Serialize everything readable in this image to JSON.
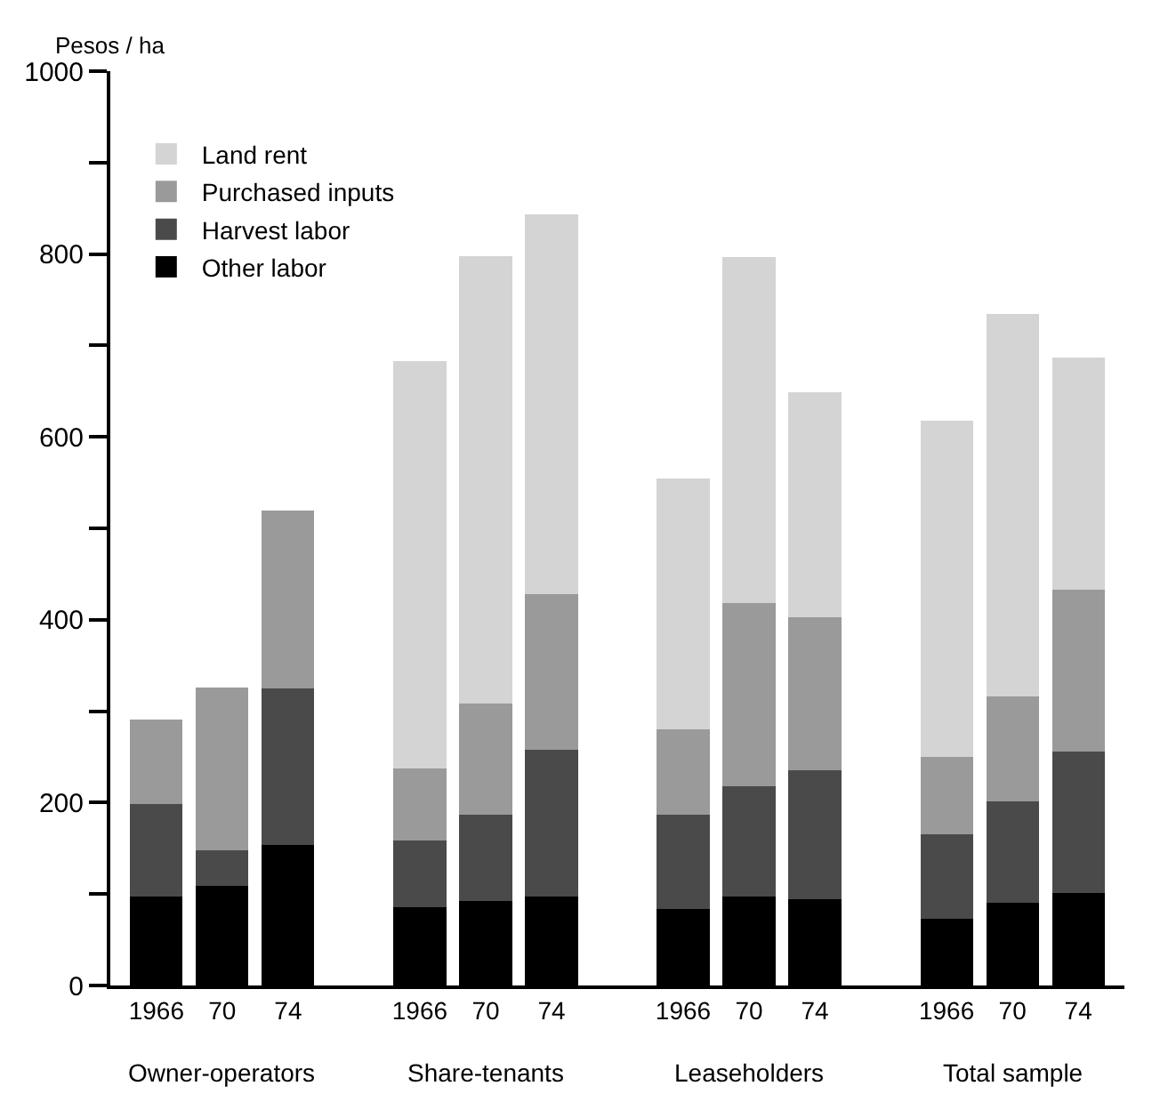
{
  "chart_data": {
    "type": "bar",
    "stacked": true,
    "ylabel": "Pesos / ha",
    "categories": [
      "1966",
      "70",
      "74",
      null,
      "1966",
      "70",
      "74",
      null,
      "1966",
      "70",
      "74",
      null,
      "1966",
      "70",
      "74"
    ],
    "series": [
      {
        "name": "Other labor",
        "color": "#000000",
        "values": [
          97,
          109,
          154,
          null,
          86,
          92,
          97,
          null,
          84,
          97,
          94,
          null,
          73,
          90,
          101
        ]
      },
      {
        "name": "Harvest labor",
        "color": "#4a4a4a",
        "values": [
          101,
          39,
          171,
          null,
          73,
          95,
          161,
          null,
          103,
          121,
          141,
          null,
          92,
          111,
          155
        ]
      },
      {
        "name": "Purchased inputs",
        "color": "#9a9a9a",
        "values": [
          93,
          178,
          194,
          null,
          78,
          121,
          170,
          null,
          93,
          200,
          168,
          null,
          85,
          115,
          177
        ]
      },
      {
        "name": "Land rent",
        "color": "#d4d4d4",
        "values": [
          0,
          0,
          0,
          null,
          446,
          490,
          415,
          null,
          274,
          379,
          246,
          null,
          368,
          418,
          254
        ]
      }
    ],
    "annotations": [
      "Owner-operators",
      "Share-tenants",
      "Leaseholders",
      "Total sample"
    ],
    "ylim": [
      0,
      1000
    ],
    "yticks": [
      0,
      {
        "value": 100,
        "label": null
      },
      200,
      {
        "value": 300,
        "label": null
      },
      400,
      {
        "value": 500,
        "label": null
      },
      600,
      {
        "value": 700,
        "label": null
      },
      800,
      {
        "value": 900,
        "label": null
      },
      1000
    ],
    "grid": false,
    "legend": "top left"
  }
}
